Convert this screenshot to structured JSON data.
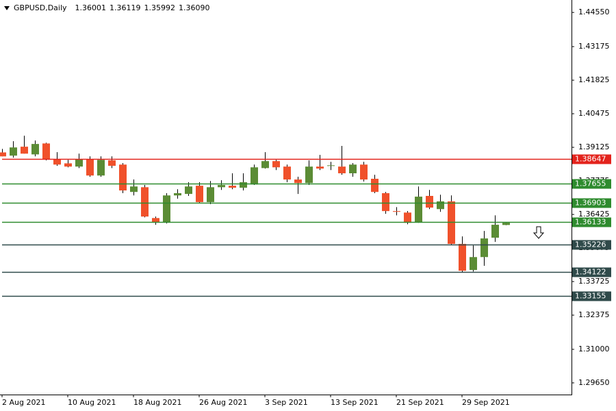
{
  "chart_data": {
    "type": "candlestick",
    "title": "GBPUSD,Daily",
    "ohlc_labels": [
      "1.36001",
      "1.36119",
      "1.35992",
      "1.36090"
    ],
    "categories": [
      "2 Aug 2021",
      null,
      null,
      null,
      null,
      null,
      "10 Aug 2021",
      null,
      null,
      null,
      null,
      null,
      "18 Aug 2021",
      null,
      null,
      null,
      null,
      null,
      "26 Aug 2021",
      null,
      null,
      null,
      null,
      null,
      "3 Sep 2021",
      null,
      null,
      null,
      null,
      null,
      "13 Sep 2021",
      null,
      null,
      null,
      null,
      null,
      "21 Sep 2021",
      null,
      null,
      null,
      null,
      null,
      "29 Sep 2021",
      null,
      null,
      null,
      null
    ],
    "open": [
      1.3892,
      1.3879,
      1.3915,
      1.3884,
      1.3928,
      1.3865,
      1.3848,
      1.3835,
      1.3865,
      1.3799,
      1.386,
      1.3843,
      1.3733,
      1.3752,
      1.3628,
      1.3612,
      1.3719,
      1.3725,
      1.3758,
      1.3692,
      1.3752,
      1.3758,
      1.375,
      1.3763,
      1.3829,
      1.3857,
      1.3835,
      1.3783,
      1.3769,
      1.3835,
      1.3838,
      1.3835,
      1.3808,
      1.3843,
      1.3786,
      1.3728,
      1.3656,
      1.365,
      1.3612,
      1.3717,
      1.3664,
      1.3695,
      1.3524,
      1.3419,
      1.3471,
      1.3549,
      1.36001
    ],
    "high": [
      1.3906,
      1.3937,
      1.3959,
      1.394,
      1.3931,
      1.3893,
      1.3862,
      1.3887,
      1.3876,
      1.3876,
      1.3876,
      1.3849,
      1.3783,
      1.3761,
      1.3634,
      1.3728,
      1.3744,
      1.3772,
      1.3772,
      1.3777,
      1.378,
      1.3808,
      1.3808,
      1.3843,
      1.3893,
      1.3862,
      1.3843,
      1.3794,
      1.386,
      1.3882,
      1.3854,
      1.3918,
      1.3849,
      1.3854,
      1.3802,
      1.3733,
      1.3672,
      1.3656,
      1.3755,
      1.3741,
      1.3722,
      1.3719,
      1.3554,
      1.3518,
      1.3576,
      1.3639,
      1.36119
    ],
    "low": [
      1.3876,
      1.3871,
      1.3887,
      1.3876,
      1.386,
      1.3838,
      1.3832,
      1.3829,
      1.3794,
      1.3794,
      1.3829,
      1.3728,
      1.3719,
      1.3631,
      1.3601,
      1.3606,
      1.3706,
      1.3717,
      1.3689,
      1.3684,
      1.3741,
      1.3744,
      1.3739,
      1.3761,
      1.3827,
      1.3821,
      1.3772,
      1.3725,
      1.3761,
      1.3821,
      1.3821,
      1.3802,
      1.3794,
      1.3775,
      1.3728,
      1.3645,
      1.3639,
      1.3603,
      1.3609,
      1.3664,
      1.3653,
      1.3521,
      1.3411,
      1.3413,
      1.3436,
      1.3532,
      1.35992
    ],
    "close": [
      1.3876,
      1.3912,
      1.3887,
      1.3926,
      1.3865,
      1.3843,
      1.3835,
      1.3865,
      1.3799,
      1.3862,
      1.3838,
      1.3739,
      1.3755,
      1.3634,
      1.3612,
      1.3719,
      1.3728,
      1.3755,
      1.3692,
      1.3752,
      1.3761,
      1.375,
      1.3772,
      1.3832,
      1.3857,
      1.3832,
      1.3783,
      1.3769,
      1.3835,
      1.3827,
      1.384,
      1.3808,
      1.3843,
      1.3783,
      1.3733,
      1.3656,
      1.3653,
      1.3609,
      1.3714,
      1.367,
      1.3695,
      1.3524,
      1.3416,
      1.3471,
      1.3546,
      1.3601,
      1.3609
    ],
    "up_color": "#5b8c35",
    "down_color": "#f0512b",
    "ylim": [
      1.2918,
      1.4505
    ],
    "yticks": [
      {
        "value": 1.4455,
        "label": "1.44550"
      },
      1.43175,
      1.41825,
      1.40475,
      1.39125,
      1.37775,
      1.36425,
      1.35075,
      1.33725,
      1.32375,
      {
        "value": 1.31,
        "label": "1.31000"
      },
      {
        "value": 1.2965,
        "label": "1.29650"
      }
    ],
    "levels": [
      {
        "value": 1.38647,
        "color": "#e3231c"
      },
      {
        "value": 1.37655,
        "color": "#2e8b2e"
      },
      {
        "value": 1.36903,
        "color": "#2e8b2e"
      },
      {
        "value": 1.36133,
        "color": "#2e8b2e"
      },
      {
        "value": 1.35226,
        "color": "#2f4a4a"
      },
      {
        "value": 1.34122,
        "color": "#2f4a4a"
      },
      {
        "value": 1.33155,
        "color": "#2f4a4a"
      }
    ]
  }
}
